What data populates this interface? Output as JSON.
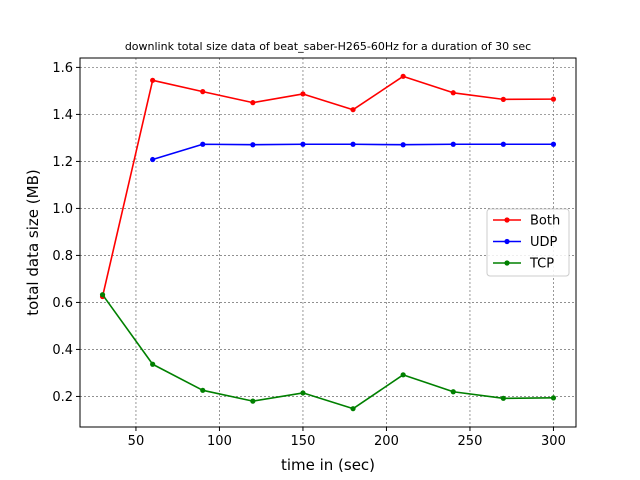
{
  "chart_data": {
    "type": "line",
    "title": "downlink total size data of beat_saber-H265-60Hz for a duration of 30 sec",
    "xlabel": "time in (sec)",
    "ylabel": "total data size (MB)",
    "xlim": [
      16.5,
      313.5
    ],
    "ylim": [
      0.07,
      1.64
    ],
    "xticks": [
      50,
      100,
      150,
      200,
      250,
      300
    ],
    "xtick_labels": [
      "50",
      "100",
      "150",
      "200",
      "250",
      "300"
    ],
    "yticks": [
      0.2,
      0.4,
      0.6,
      0.8,
      1.0,
      1.2,
      1.4,
      1.6
    ],
    "ytick_labels": [
      "0.2",
      "0.4",
      "0.6",
      "0.8",
      "1.0",
      "1.2",
      "1.4",
      "1.6"
    ],
    "grid": true,
    "legend_position": "center-right",
    "series": [
      {
        "name": "Both",
        "color": "#ff0000",
        "x": [
          30,
          60,
          90,
          120,
          150,
          180,
          210,
          240,
          270,
          300
        ],
        "y": [
          0.625,
          1.545,
          1.497,
          1.45,
          1.487,
          1.42,
          1.562,
          1.492,
          1.464,
          1.465
        ]
      },
      {
        "name": "UDP",
        "color": "#0000ff",
        "x": [
          60,
          90,
          120,
          150,
          180,
          210,
          240,
          270,
          300
        ],
        "y": [
          1.208,
          1.273,
          1.271,
          1.273,
          1.273,
          1.271,
          1.273,
          1.273,
          1.273
        ]
      },
      {
        "name": "TCP",
        "color": "#008000",
        "x": [
          30,
          60,
          90,
          120,
          150,
          180,
          210,
          240,
          270,
          300
        ],
        "y": [
          0.633,
          0.337,
          0.226,
          0.18,
          0.215,
          0.148,
          0.292,
          0.22,
          0.192,
          0.194
        ]
      }
    ]
  }
}
